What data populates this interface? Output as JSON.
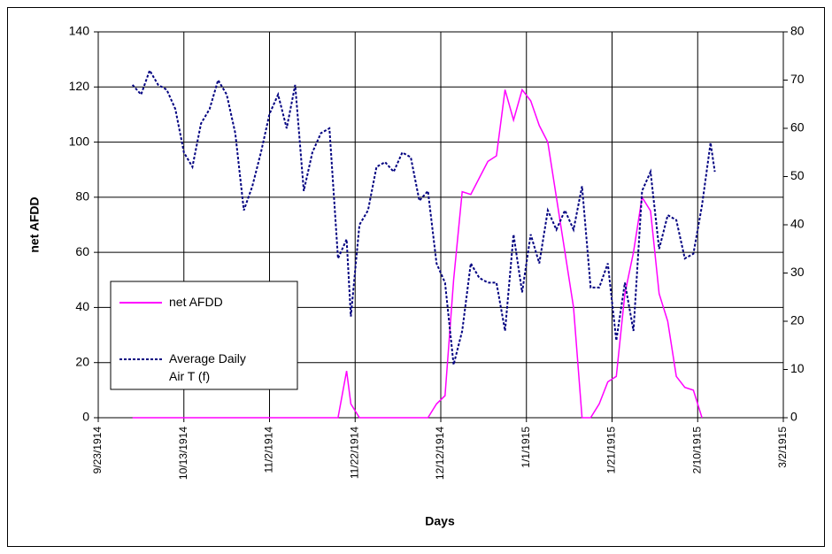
{
  "chart_data": {
    "type": "line",
    "x_label": "Days",
    "y_label": "net AFDD",
    "x": [
      "10/1/1914",
      "10/3/1914",
      "10/5/1914",
      "10/7/1914",
      "10/9/1914",
      "10/11/1914",
      "10/13/1914",
      "10/15/1914",
      "10/17/1914",
      "10/19/1914",
      "10/21/1914",
      "10/23/1914",
      "10/25/1914",
      "10/27/1914",
      "10/29/1914",
      "10/31/1914",
      "11/2/1914",
      "11/4/1914",
      "11/6/1914",
      "11/8/1914",
      "11/10/1914",
      "11/12/1914",
      "11/14/1914",
      "11/16/1914",
      "11/18/1914",
      "11/20/1914",
      "11/21/1914",
      "11/23/1914",
      "11/25/1914",
      "11/27/1914",
      "11/29/1914",
      "12/1/1914",
      "12/3/1914",
      "12/5/1914",
      "12/7/1914",
      "12/9/1914",
      "12/11/1914",
      "12/13/1914",
      "12/15/1914",
      "12/17/1914",
      "12/19/1914",
      "12/21/1914",
      "12/23/1914",
      "12/25/1914",
      "12/27/1914",
      "12/29/1914",
      "12/31/1914",
      "1/2/1915",
      "1/4/1915",
      "1/6/1915",
      "1/8/1915",
      "1/10/1915",
      "1/12/1915",
      "1/14/1915",
      "1/16/1915",
      "1/18/1915",
      "1/20/1915",
      "1/22/1915",
      "1/24/1915",
      "1/26/1915",
      "1/28/1915",
      "1/30/1915",
      "2/1/1915",
      "2/3/1915",
      "2/5/1915",
      "2/7/1915",
      "2/9/1915",
      "2/11/1915",
      "2/13/1915",
      "2/14/1915"
    ],
    "series": [
      {
        "name": "net AFDD",
        "color": "#ff00ff",
        "line_style": "solid",
        "values": [
          0,
          0,
          0,
          0,
          0,
          0,
          0,
          0,
          0,
          0,
          0,
          0,
          0,
          0,
          0,
          0,
          0,
          0,
          0,
          0,
          0,
          0,
          0,
          0,
          0,
          17,
          5,
          0,
          0,
          0,
          0,
          0,
          0,
          0,
          0,
          0,
          5,
          8,
          50,
          82,
          81,
          87,
          93,
          95,
          119,
          108,
          119,
          115,
          106,
          100,
          80,
          60,
          40,
          0,
          0,
          5,
          13,
          15,
          45,
          60,
          80,
          75,
          45,
          35,
          15,
          11,
          10,
          0,
          null,
          null
        ]
      },
      {
        "name": "Average Daily Air T (f)",
        "color": "#000080",
        "line_style": "dashed",
        "axis": "y2",
        "values": [
          69,
          67,
          72,
          69,
          68,
          64,
          55,
          52,
          61,
          64,
          70,
          67,
          59,
          43,
          48,
          55,
          63,
          67,
          60,
          69,
          47,
          55,
          59,
          60,
          33,
          37,
          21,
          40,
          43,
          52,
          53,
          51,
          55,
          54,
          45,
          47,
          32,
          28,
          11,
          18,
          32,
          29,
          28,
          28,
          18,
          38,
          26,
          38,
          32,
          43,
          39,
          43,
          39,
          48,
          27,
          27,
          32,
          16,
          28,
          18,
          47,
          51,
          35,
          42,
          41,
          33,
          34,
          44,
          57,
          51
        ]
      }
    ],
    "xlim": [
      "9/23/1914",
      "3/2/1915"
    ],
    "xticks": [
      "9/23/1914",
      "10/13/1914",
      "11/2/1914",
      "11/22/1914",
      "12/12/1914",
      "1/1/1915",
      "1/21/1915",
      "2/10/1915",
      "3/2/1915"
    ],
    "ylim": [
      0,
      140
    ],
    "yticks": [
      0,
      20,
      40,
      60,
      80,
      100,
      120,
      140
    ],
    "y2lim": [
      0,
      80
    ],
    "y2ticks": [
      0,
      10,
      20,
      30,
      40,
      50,
      60,
      70,
      80
    ],
    "grid": true,
    "legend": "lower left"
  }
}
